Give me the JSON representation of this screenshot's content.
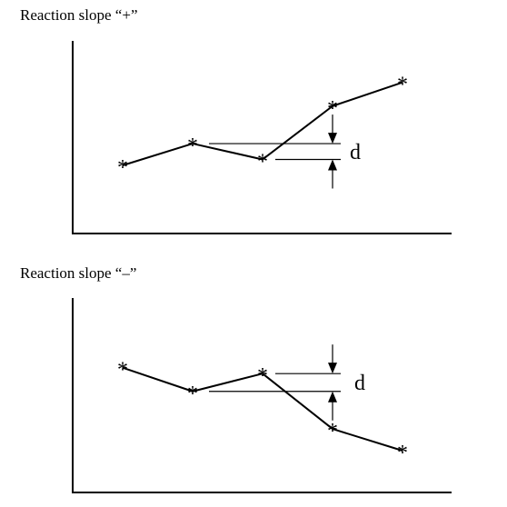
{
  "panels": [
    {
      "title": "Reaction slope “+”",
      "marker": "*",
      "gap_label": "d",
      "points": [
        {
          "x": 1,
          "y": 0.0
        },
        {
          "x": 2,
          "y": 0.55
        },
        {
          "x": 3,
          "y": 0.15
        },
        {
          "x": 4,
          "y": 1.5
        },
        {
          "x": 5,
          "y": 2.1
        }
      ]
    },
    {
      "title": "Reaction slope “–”",
      "marker": "*",
      "gap_label": "d",
      "points": [
        {
          "x": 1,
          "y": 2.1
        },
        {
          "x": 2,
          "y": 1.5
        },
        {
          "x": 3,
          "y": 1.95
        },
        {
          "x": 4,
          "y": 0.55
        },
        {
          "x": 5,
          "y": 0.0
        }
      ]
    }
  ]
}
